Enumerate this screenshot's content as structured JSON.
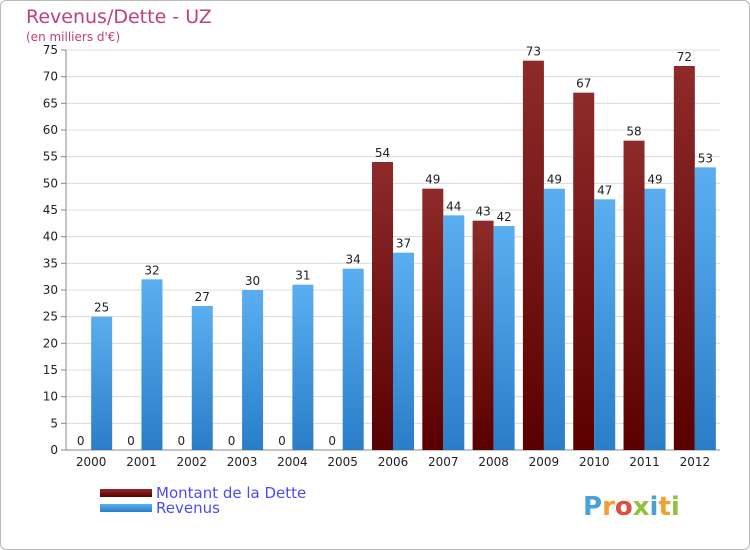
{
  "chart_data": {
    "type": "bar",
    "title": "Revenus/Dette - UZ",
    "subtitle": "(en milliers d'€)",
    "categories": [
      "2000",
      "2001",
      "2002",
      "2003",
      "2004",
      "2005",
      "2006",
      "2007",
      "2008",
      "2009",
      "2010",
      "2011",
      "2012"
    ],
    "series": [
      {
        "name": "Montant de la Dette",
        "values": [
          0,
          0,
          0,
          0,
          0,
          0,
          54,
          49,
          43,
          73,
          67,
          58,
          72
        ],
        "color": "#7a1010"
      },
      {
        "name": "Revenus",
        "values": [
          25,
          32,
          27,
          30,
          31,
          34,
          37,
          44,
          42,
          49,
          47,
          49,
          53
        ],
        "color": "#3d9ee8"
      }
    ],
    "ylim": [
      0,
      75
    ],
    "yticks": [
      0,
      5,
      10,
      15,
      20,
      25,
      30,
      35,
      40,
      45,
      50,
      55,
      60,
      65,
      70,
      75
    ],
    "grid": true,
    "legend_position": "bottom-left"
  },
  "logo": {
    "letters": [
      "P",
      "r",
      "o",
      "x",
      "i",
      "t",
      "i"
    ],
    "colors": [
      "#4aa0d8",
      "#f0a030",
      "#e05040",
      "#90c040",
      "#4aa0d8",
      "#f0a030",
      "#90c040"
    ]
  }
}
